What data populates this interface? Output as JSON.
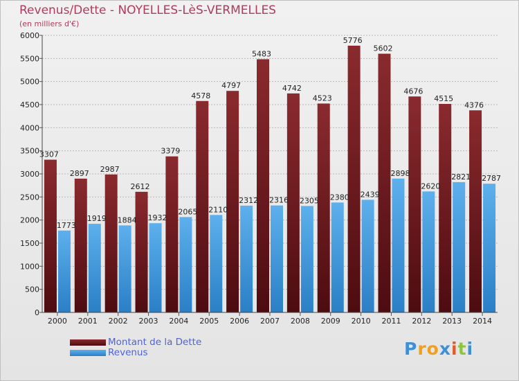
{
  "title": "Revenus/Dette - NOYELLES-LèS-VERMELLES",
  "subtitle": "(en milliers d'€)",
  "colors": {
    "dette": "#7b1f22",
    "dette_dark": "#4d0c10",
    "revenus": "#4aa3e3",
    "revenus_dark": "#2a7fc6",
    "title": "#b03a5b",
    "legend_text": "#4f63d6"
  },
  "chart_data": {
    "type": "bar",
    "categories": [
      "2000",
      "2001",
      "2002",
      "2003",
      "2004",
      "2005",
      "2006",
      "2007",
      "2008",
      "2009",
      "2010",
      "2011",
      "2012",
      "2013",
      "2014"
    ],
    "series": [
      {
        "name": "Montant de la Dette",
        "values": [
          3307,
          2897,
          2987,
          2612,
          3379,
          4578,
          4797,
          5483,
          4742,
          4523,
          5776,
          5602,
          4676,
          4515,
          4376
        ]
      },
      {
        "name": "Revenus",
        "values": [
          1773,
          1919,
          1884,
          1932,
          2065,
          2110,
          2312,
          2316,
          2305,
          2380,
          2439,
          2898,
          2620,
          2821,
          2787
        ]
      }
    ],
    "ylim": [
      0,
      6000
    ],
    "yticks": [
      0,
      500,
      1000,
      1500,
      2000,
      2500,
      3000,
      3500,
      4000,
      4500,
      5000,
      5500,
      6000
    ],
    "grid": true,
    "legend": "bottom-left"
  },
  "legend": [
    {
      "label": "Montant de la Dette"
    },
    {
      "label": "Revenus"
    }
  ],
  "logo": {
    "letters": [
      "P",
      "r",
      "o",
      "x",
      "i",
      "t",
      "i"
    ],
    "colors": [
      "#3e8fd6",
      "#f0a020",
      "#f0a020",
      "#3e8fd6",
      "#e05a2a",
      "#8cc63f",
      "#3e8fd6"
    ]
  }
}
